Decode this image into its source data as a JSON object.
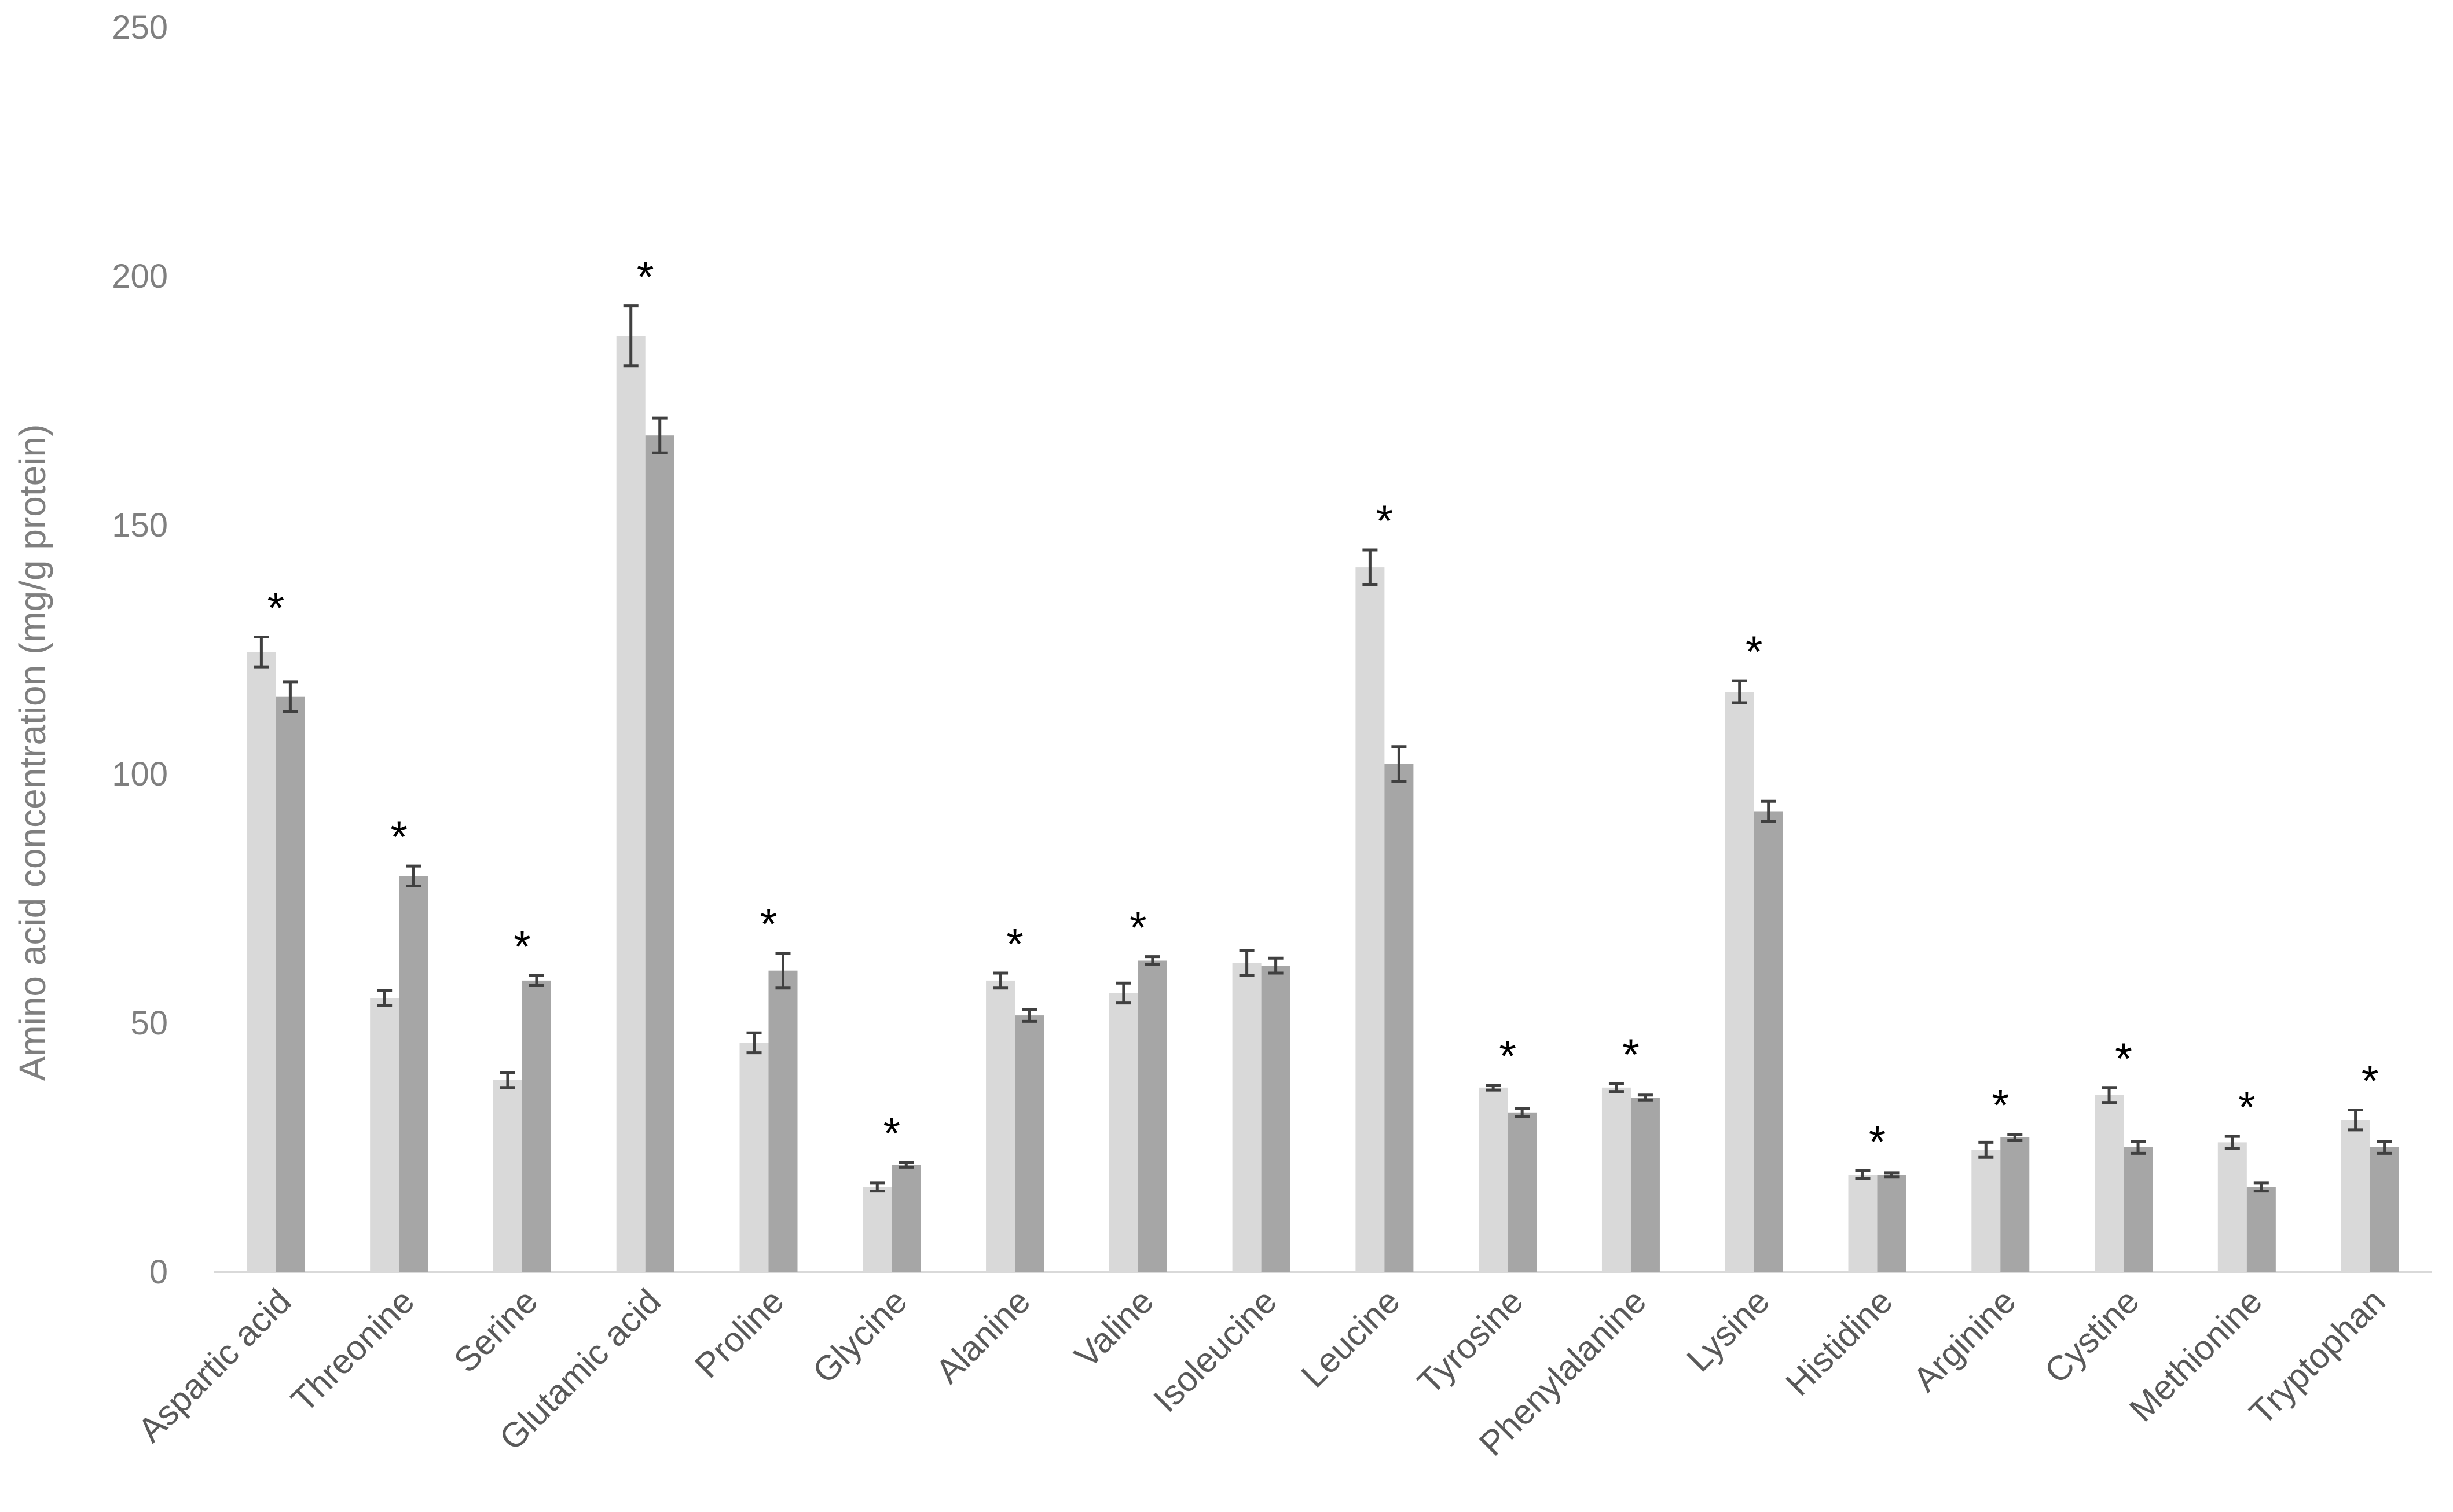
{
  "chart_data": {
    "type": "bar",
    "title": "",
    "xlabel": "",
    "ylabel": "Amino acid concentration (mg/g protein)",
    "ylim": [
      0,
      250
    ],
    "yticks": [
      0,
      50,
      100,
      150,
      200,
      250
    ],
    "grid": false,
    "legend": "none",
    "categories": [
      "Aspartic acid",
      "Threonine",
      "Serine",
      "Glutamic acid",
      "Proline",
      "Glycine",
      "Alanine",
      "Valine",
      "Isoleucine",
      "Leucine",
      "Tyrosine",
      "Phenylalanine",
      "Lysine",
      "Histidine",
      "Arginine",
      "Cystine",
      "Methionine",
      "Tryptophan"
    ],
    "series": [
      {
        "color": "#d9d9d9",
        "values": [
          124.5,
          55,
          38.5,
          188,
          46,
          17,
          58.5,
          56,
          62,
          141.5,
          37,
          37,
          116.5,
          19.5,
          24.5,
          35.5,
          26,
          30.5
        ],
        "errors": [
          3,
          1.5,
          1.5,
          6,
          2,
          0.8,
          1.5,
          2,
          2.5,
          3.5,
          0.5,
          0.8,
          2.2,
          0.8,
          1.5,
          1.5,
          1.2,
          2
        ]
      },
      {
        "color": "#a6a6a6",
        "values": [
          115.5,
          79.5,
          58.5,
          168,
          60.5,
          21.5,
          51.5,
          62.5,
          61.5,
          102,
          32,
          35,
          92.5,
          19.5,
          27,
          25,
          17,
          25
        ],
        "errors": [
          3,
          2,
          1,
          3.5,
          3.5,
          0.5,
          1.2,
          0.8,
          1.5,
          3.5,
          0.8,
          0.5,
          2,
          0.4,
          0.6,
          1.2,
          0.8,
          1.2
        ]
      }
    ],
    "significance_marker": "*",
    "significant": [
      true,
      true,
      true,
      true,
      true,
      true,
      true,
      true,
      false,
      true,
      true,
      true,
      true,
      true,
      true,
      true,
      true,
      true
    ]
  }
}
